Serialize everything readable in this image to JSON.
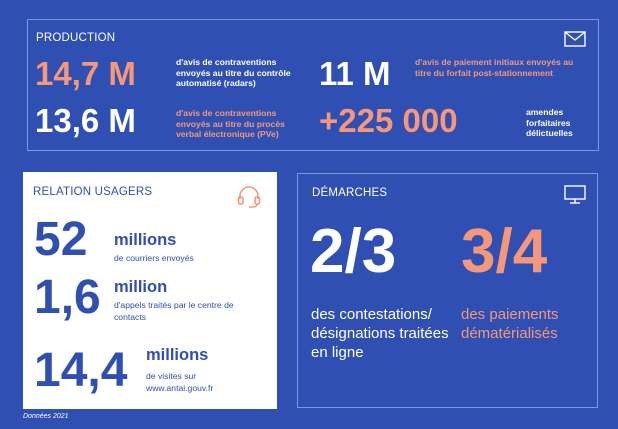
{
  "production": {
    "title": "PRODUCTION",
    "icon": "mail-icon",
    "items": [
      {
        "value": "14,7 M",
        "desc": "d'avis de contraventions envoyés au titre du contrôle automatisé (radars)"
      },
      {
        "value": "13,6 M",
        "desc": "d'avis de contraventions envoyés au titre du procès verbal électronique (PVe)"
      },
      {
        "value": "11 M",
        "desc": "d'avis de paiement initiaux envoyés au titre du forfait post-stationnement"
      },
      {
        "value": "+225 000",
        "desc": "amendes forfaitaires délictuelles"
      }
    ]
  },
  "usagers": {
    "title": "RELATION USAGERS",
    "icon": "headset-icon",
    "items": [
      {
        "value": "52",
        "unit": "millions",
        "sub": "de courriers envoyés"
      },
      {
        "value": "1,6",
        "unit": "million",
        "sub": "d'appels traités par le centre de contacts"
      },
      {
        "value": "14,4",
        "unit": "millions",
        "sub": "de visites sur www.antai.gouv.fr"
      }
    ]
  },
  "demarches": {
    "title": "DÉMARCHES",
    "icon": "monitor-icon",
    "items": [
      {
        "value": "2/3",
        "text": "des contestations/ désignations traitées en ligne"
      },
      {
        "value": "3/4",
        "text": "des paiements dématérialisés"
      }
    ]
  },
  "footnote": "Données 2021",
  "colors": {
    "background": "#2f4fb3",
    "accent": "#f6977a",
    "white": "#ffffff"
  }
}
